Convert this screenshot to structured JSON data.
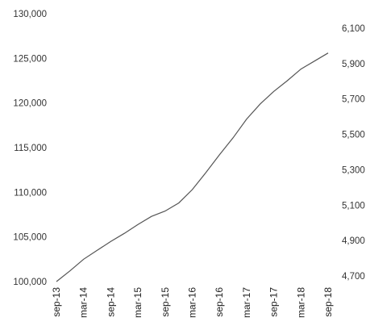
{
  "chart_data": {
    "type": "line",
    "title": "",
    "xlabel": "",
    "ylabel": "",
    "y2label": "",
    "ylim": [
      100000,
      130000
    ],
    "y2lim": [
      4700,
      6100
    ],
    "y_ticks": [
      "100,000",
      "105,000",
      "110,000",
      "115,000",
      "120,000",
      "125,000",
      "130,000"
    ],
    "y2_ticks": [
      "4,700",
      "4,900",
      "5,100",
      "5,300",
      "5,500",
      "5,700",
      "5,900",
      "6,100"
    ],
    "x_ticks": [
      "sep-13",
      "mar-14",
      "sep-14",
      "mar-15",
      "sep-15",
      "mar-16",
      "sep-16",
      "mar-17",
      "sep-17",
      "mar-18",
      "sep-18"
    ],
    "line_color": "#555555",
    "grid": false,
    "legend": "none",
    "series": [
      {
        "axis": "left",
        "x": [
          "sep-13",
          "dec-13",
          "mar-14",
          "jun-14",
          "sep-14",
          "dec-14",
          "mar-15",
          "jun-15",
          "sep-15",
          "dec-15",
          "mar-16",
          "jun-16",
          "sep-16",
          "dec-16",
          "mar-17",
          "jun-17",
          "sep-17",
          "dec-17",
          "mar-18",
          "jun-18",
          "sep-18"
        ],
        "values": [
          100000,
          101200,
          102500,
          103500,
          104500,
          105400,
          106400,
          107300,
          107900,
          108800,
          110300,
          112200,
          114200,
          116100,
          118200,
          119900,
          121300,
          122500,
          123800,
          124700,
          125600
        ]
      }
    ]
  }
}
